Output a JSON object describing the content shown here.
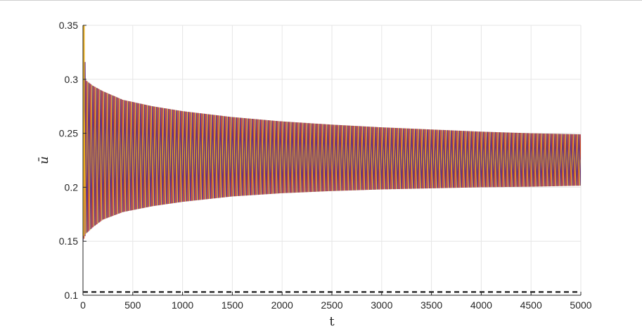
{
  "chart_data": {
    "type": "line",
    "title": "",
    "xlabel": "t",
    "ylabel": "ū",
    "xlim": [
      0,
      5000
    ],
    "ylim": [
      0.1,
      0.35
    ],
    "xticks": [
      0,
      500,
      1000,
      1500,
      2000,
      2500,
      3000,
      3500,
      4000,
      4500,
      5000
    ],
    "yticks": [
      0.1,
      0.15,
      0.2,
      0.25,
      0.3,
      0.35
    ],
    "xtick_labels": [
      "0",
      "500",
      "1000",
      "1500",
      "2000",
      "2500",
      "3000",
      "3500",
      "4000",
      "4500",
      "5000"
    ],
    "ytick_labels": [
      "0.1",
      "0.15",
      "0.2",
      "0.25",
      "0.3",
      "0.35"
    ],
    "grid": true,
    "legend": "none",
    "oscillation": {
      "description_values": "many overlapping oscillating series; envelope in data units",
      "period": 40,
      "envelope_t": [
        0,
        30,
        100,
        200,
        400,
        700,
        1000,
        1500,
        2000,
        2500,
        3000,
        3500,
        4000,
        4500,
        5000
      ],
      "envelope_upper": [
        0.35,
        0.299,
        0.294,
        0.289,
        0.281,
        0.275,
        0.2705,
        0.265,
        0.261,
        0.258,
        0.2555,
        0.2535,
        0.2515,
        0.25,
        0.249
      ],
      "envelope_lower": [
        0.15,
        0.157,
        0.163,
        0.17,
        0.177,
        0.1825,
        0.1865,
        0.1915,
        0.1945,
        0.1965,
        0.198,
        0.199,
        0.2,
        0.2005,
        0.2015
      ]
    },
    "series": [
      {
        "color": "#7e2f8e",
        "phase": 0.0
      },
      {
        "color": "#d95319",
        "phase": 0.33
      },
      {
        "color": "#edb120",
        "phase": 0.66
      },
      {
        "color": "#5b2a86",
        "phase": 0.5
      }
    ],
    "reference_line": {
      "y": 0.103,
      "style": "dashed",
      "color": "#000000"
    }
  }
}
